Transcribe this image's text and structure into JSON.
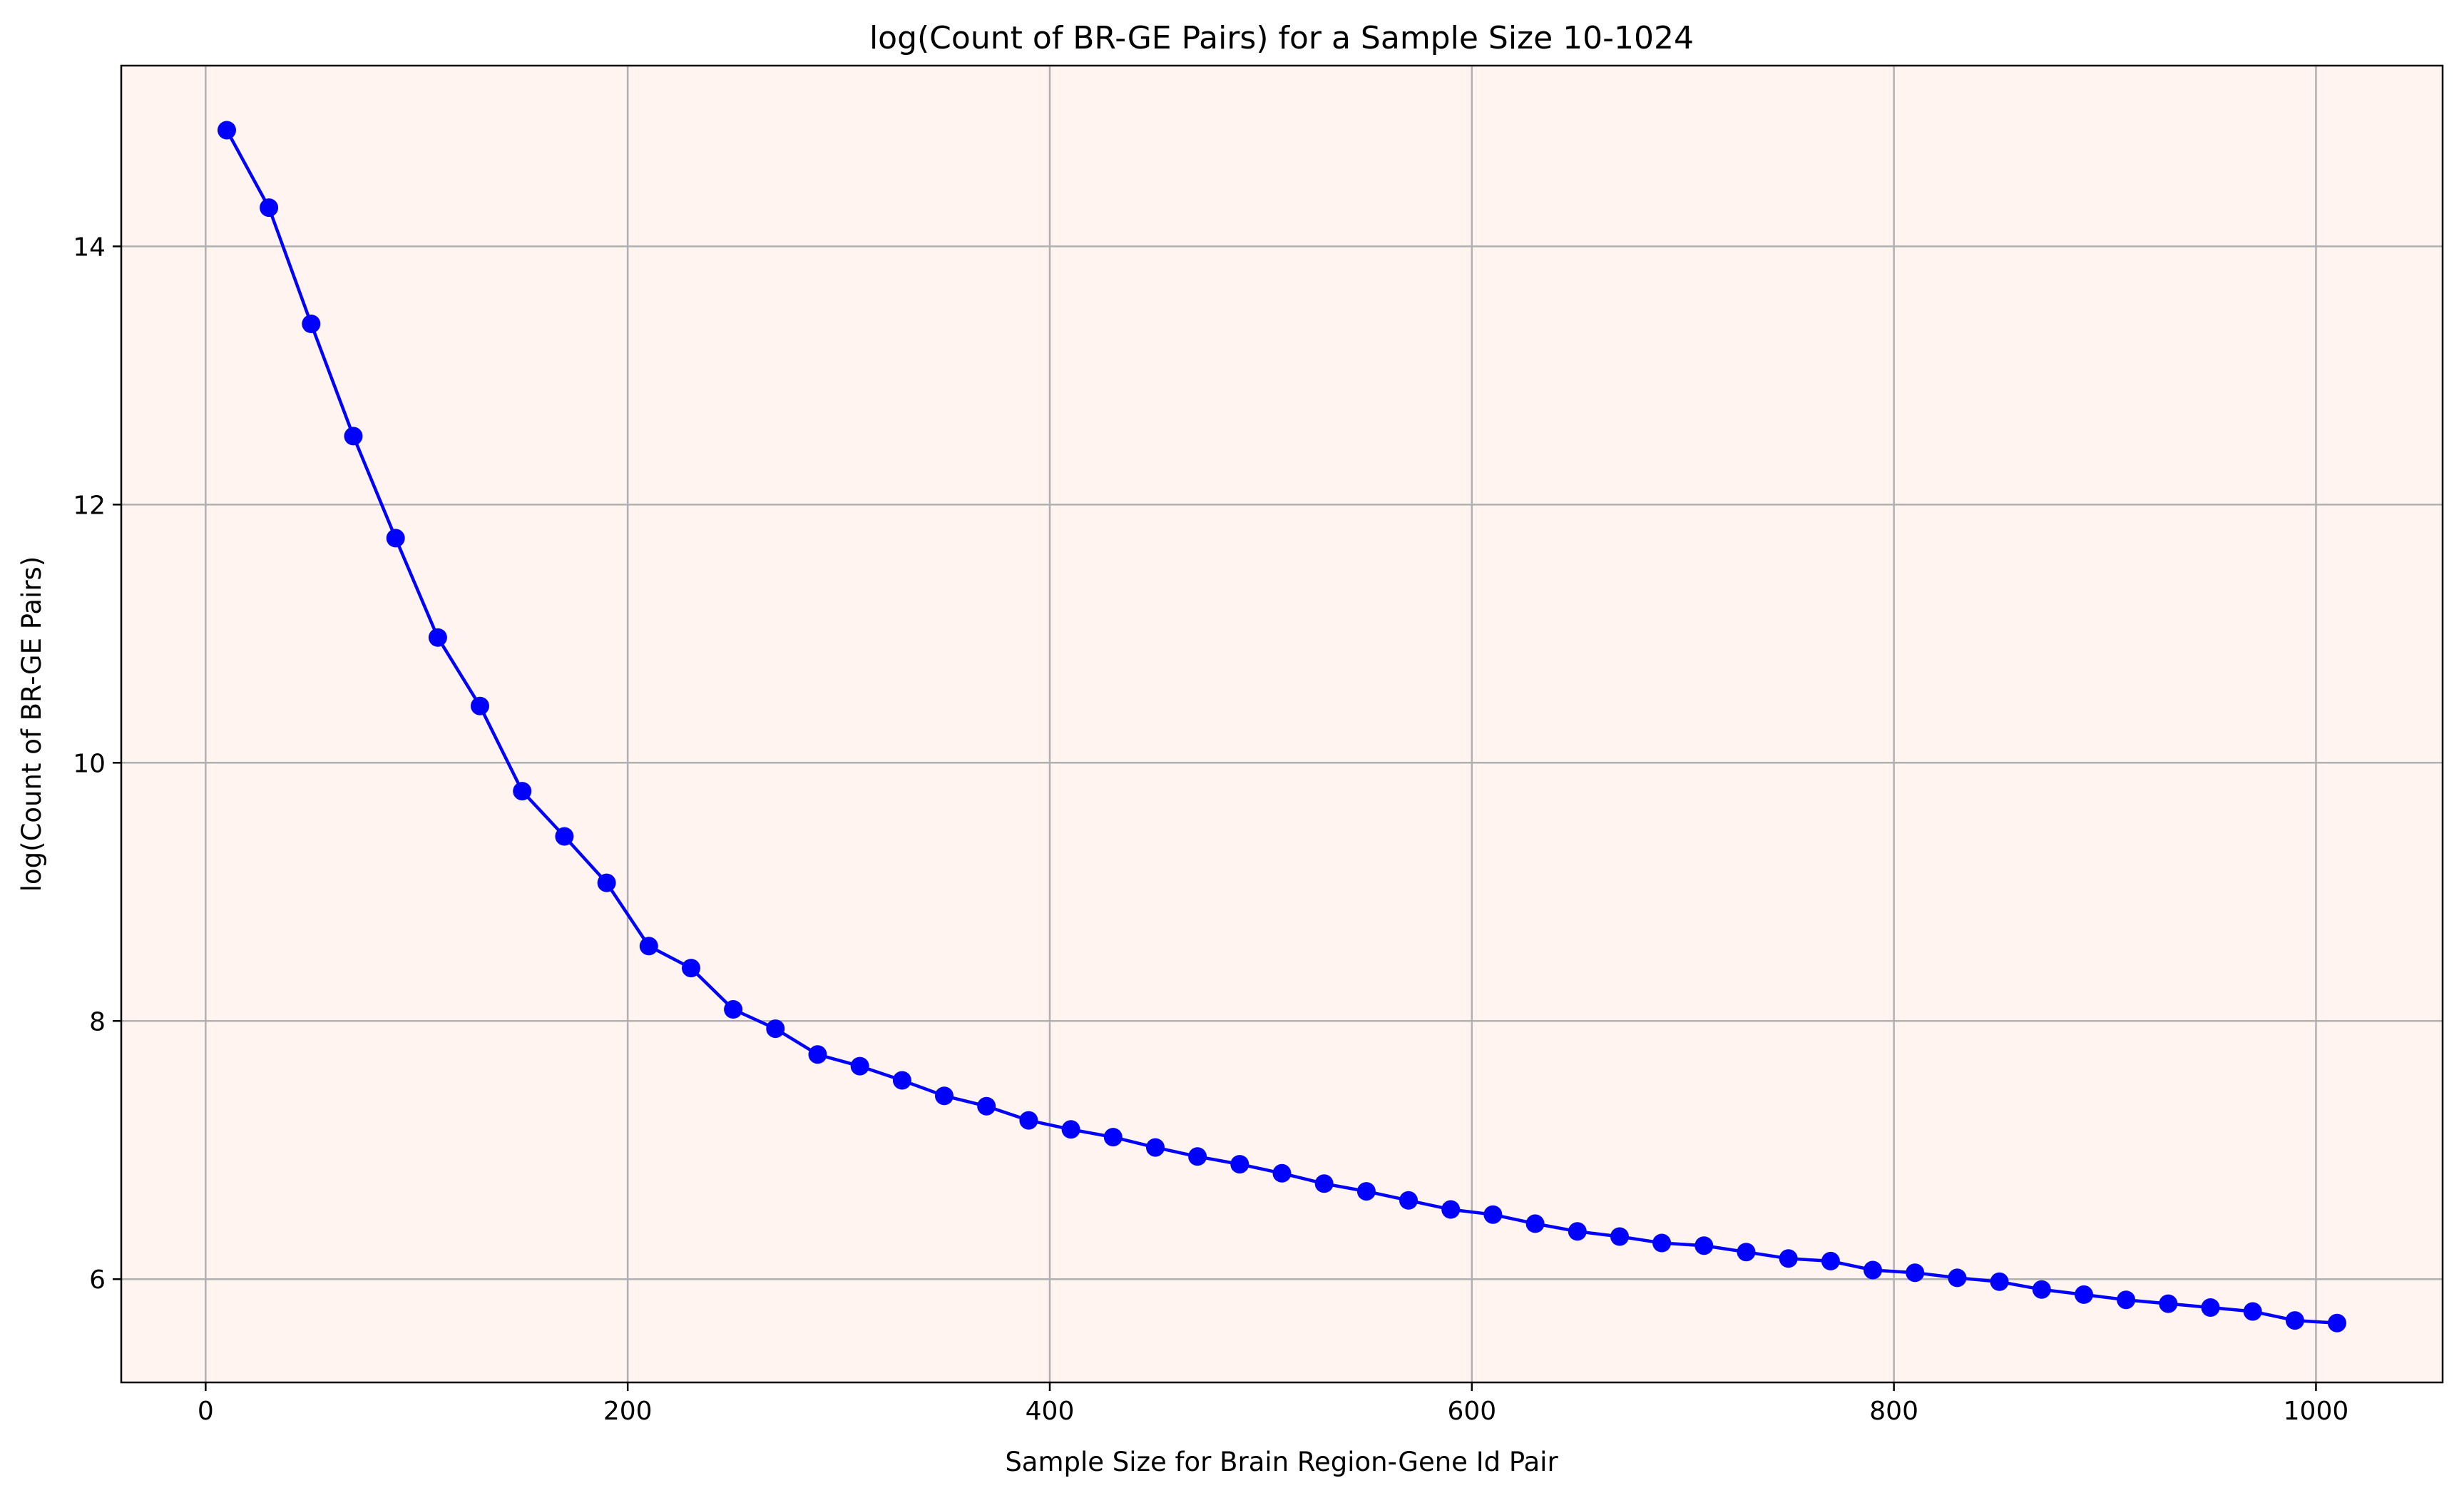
{
  "chart_data": {
    "type": "line",
    "title": "log(Count of BR-GE Pairs) for a Sample Size 10-1024",
    "xlabel": "Sample Size for Brain Region-Gene Id Pair",
    "ylabel": "log(Count of BR-GE Pairs)",
    "xlim": [
      -40,
      1060
    ],
    "ylim": [
      5.2,
      15.4
    ],
    "xticks": [
      0,
      200,
      400,
      600,
      800,
      1000
    ],
    "yticks": [
      6,
      8,
      10,
      12,
      14
    ],
    "grid": true,
    "legend": "none",
    "colors": {
      "line": "#0000ff",
      "marker": "#0000ff",
      "plot_background": "#fff4f0",
      "grid": "#b0b0b0"
    },
    "series": [
      {
        "x": [
          10,
          30,
          50,
          70,
          90,
          110,
          130,
          150,
          170,
          190,
          210,
          230,
          250,
          270,
          290,
          310,
          330,
          350,
          370,
          390,
          410,
          430,
          450,
          470,
          490,
          510,
          530,
          550,
          570,
          590,
          610,
          630,
          650,
          670,
          690,
          710,
          730,
          750,
          770,
          790,
          810,
          830,
          850,
          870,
          890,
          910,
          930,
          950,
          970,
          990,
          1010
        ],
        "y": [
          14.9,
          14.3,
          13.4,
          12.53,
          11.74,
          10.97,
          10.44,
          9.78,
          9.43,
          9.07,
          8.58,
          8.41,
          8.09,
          7.94,
          7.74,
          7.65,
          7.54,
          7.42,
          7.34,
          7.23,
          7.16,
          7.1,
          7.02,
          6.95,
          6.89,
          6.82,
          6.74,
          6.68,
          6.61,
          6.54,
          6.5,
          6.43,
          6.37,
          6.33,
          6.28,
          6.26,
          6.21,
          6.16,
          6.14,
          6.07,
          6.05,
          6.01,
          5.98,
          5.92,
          5.88,
          5.84,
          5.81,
          5.78,
          5.75,
          5.68,
          5.66
        ]
      }
    ]
  }
}
